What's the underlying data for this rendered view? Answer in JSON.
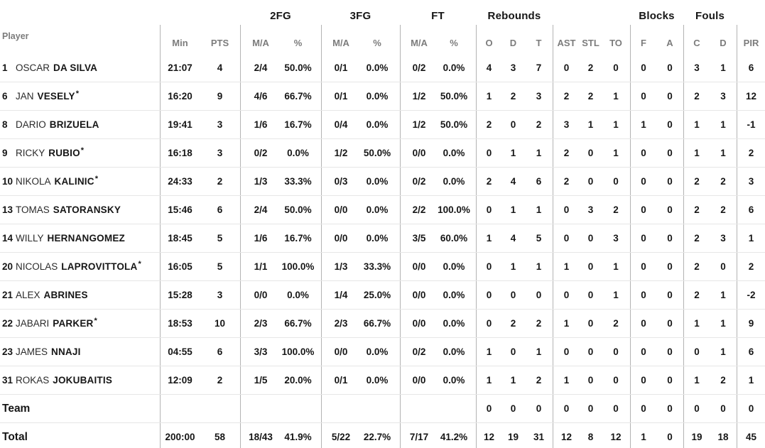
{
  "colors": {
    "text": "#161616",
    "header_gray": "#7c7c7c",
    "vertical_line": "#b3b3b3",
    "horizontal_line": "#e6e6e6",
    "background": "#ffffff"
  },
  "table": {
    "group_headers": [
      {
        "label": "",
        "span_cols": 3
      },
      {
        "label": "2FG",
        "span_cols": 2
      },
      {
        "label": "3FG",
        "span_cols": 2
      },
      {
        "label": "FT",
        "span_cols": 2
      },
      {
        "label": "Rebounds",
        "span_cols": 3
      },
      {
        "label": "",
        "span_cols": 3
      },
      {
        "label": "Blocks",
        "span_cols": 2
      },
      {
        "label": "Fouls",
        "span_cols": 2
      },
      {
        "label": "",
        "span_cols": 1
      }
    ],
    "columns": [
      "Player",
      "Min",
      "PTS",
      "M/A",
      "%",
      "M/A",
      "%",
      "M/A",
      "%",
      "O",
      "D",
      "T",
      "AST",
      "STL",
      "TO",
      "F",
      "A",
      "C",
      "D",
      "PIR"
    ],
    "stat_keys": [
      "min",
      "pts",
      "fg2_ma",
      "fg2_pct",
      "fg3_ma",
      "fg3_pct",
      "ft_ma",
      "ft_pct",
      "reb_o",
      "reb_d",
      "reb_t",
      "ast",
      "stl",
      "to",
      "blk_f",
      "blk_a",
      "foul_c",
      "foul_d",
      "pir"
    ],
    "starter_mark": "*",
    "rows": [
      {
        "no": "1",
        "first": "OSCAR",
        "last": "DA SILVA",
        "starter": false,
        "min": "21:07",
        "pts": "4",
        "fg2_ma": "2/4",
        "fg2_pct": "50.0%",
        "fg3_ma": "0/1",
        "fg3_pct": "0.0%",
        "ft_ma": "0/2",
        "ft_pct": "0.0%",
        "reb_o": "4",
        "reb_d": "3",
        "reb_t": "7",
        "ast": "0",
        "stl": "2",
        "to": "0",
        "blk_f": "0",
        "blk_a": "0",
        "foul_c": "3",
        "foul_d": "1",
        "pir": "6"
      },
      {
        "no": "6",
        "first": "JAN",
        "last": "VESELY",
        "starter": true,
        "min": "16:20",
        "pts": "9",
        "fg2_ma": "4/6",
        "fg2_pct": "66.7%",
        "fg3_ma": "0/1",
        "fg3_pct": "0.0%",
        "ft_ma": "1/2",
        "ft_pct": "50.0%",
        "reb_o": "1",
        "reb_d": "2",
        "reb_t": "3",
        "ast": "2",
        "stl": "2",
        "to": "1",
        "blk_f": "0",
        "blk_a": "0",
        "foul_c": "2",
        "foul_d": "3",
        "pir": "12"
      },
      {
        "no": "8",
        "first": "DARIO",
        "last": "BRIZUELA",
        "starter": false,
        "min": "19:41",
        "pts": "3",
        "fg2_ma": "1/6",
        "fg2_pct": "16.7%",
        "fg3_ma": "0/4",
        "fg3_pct": "0.0%",
        "ft_ma": "1/2",
        "ft_pct": "50.0%",
        "reb_o": "2",
        "reb_d": "0",
        "reb_t": "2",
        "ast": "3",
        "stl": "1",
        "to": "1",
        "blk_f": "1",
        "blk_a": "0",
        "foul_c": "1",
        "foul_d": "1",
        "pir": "-1"
      },
      {
        "no": "9",
        "first": "RICKY",
        "last": "RUBIO",
        "starter": true,
        "min": "16:18",
        "pts": "3",
        "fg2_ma": "0/2",
        "fg2_pct": "0.0%",
        "fg3_ma": "1/2",
        "fg3_pct": "50.0%",
        "ft_ma": "0/0",
        "ft_pct": "0.0%",
        "reb_o": "0",
        "reb_d": "1",
        "reb_t": "1",
        "ast": "2",
        "stl": "0",
        "to": "1",
        "blk_f": "0",
        "blk_a": "0",
        "foul_c": "1",
        "foul_d": "1",
        "pir": "2"
      },
      {
        "no": "10",
        "first": "NIKOLA",
        "last": "KALINIC",
        "starter": true,
        "min": "24:33",
        "pts": "2",
        "fg2_ma": "1/3",
        "fg2_pct": "33.3%",
        "fg3_ma": "0/3",
        "fg3_pct": "0.0%",
        "ft_ma": "0/2",
        "ft_pct": "0.0%",
        "reb_o": "2",
        "reb_d": "4",
        "reb_t": "6",
        "ast": "2",
        "stl": "0",
        "to": "0",
        "blk_f": "0",
        "blk_a": "0",
        "foul_c": "2",
        "foul_d": "2",
        "pir": "3"
      },
      {
        "no": "13",
        "first": "TOMAS",
        "last": "SATORANSKY",
        "starter": false,
        "min": "15:46",
        "pts": "6",
        "fg2_ma": "2/4",
        "fg2_pct": "50.0%",
        "fg3_ma": "0/0",
        "fg3_pct": "0.0%",
        "ft_ma": "2/2",
        "ft_pct": "100.0%",
        "reb_o": "0",
        "reb_d": "1",
        "reb_t": "1",
        "ast": "0",
        "stl": "3",
        "to": "2",
        "blk_f": "0",
        "blk_a": "0",
        "foul_c": "2",
        "foul_d": "2",
        "pir": "6"
      },
      {
        "no": "14",
        "first": "WILLY",
        "last": "HERNANGOMEZ",
        "starter": false,
        "min": "18:45",
        "pts": "5",
        "fg2_ma": "1/6",
        "fg2_pct": "16.7%",
        "fg3_ma": "0/0",
        "fg3_pct": "0.0%",
        "ft_ma": "3/5",
        "ft_pct": "60.0%",
        "reb_o": "1",
        "reb_d": "4",
        "reb_t": "5",
        "ast": "0",
        "stl": "0",
        "to": "3",
        "blk_f": "0",
        "blk_a": "0",
        "foul_c": "2",
        "foul_d": "3",
        "pir": "1"
      },
      {
        "no": "20",
        "first": "NICOLAS",
        "last": "LAPROVITTOLA",
        "starter": true,
        "min": "16:05",
        "pts": "5",
        "fg2_ma": "1/1",
        "fg2_pct": "100.0%",
        "fg3_ma": "1/3",
        "fg3_pct": "33.3%",
        "ft_ma": "0/0",
        "ft_pct": "0.0%",
        "reb_o": "0",
        "reb_d": "1",
        "reb_t": "1",
        "ast": "1",
        "stl": "0",
        "to": "1",
        "blk_f": "0",
        "blk_a": "0",
        "foul_c": "2",
        "foul_d": "0",
        "pir": "2"
      },
      {
        "no": "21",
        "first": "ALEX",
        "last": "ABRINES",
        "starter": false,
        "min": "15:28",
        "pts": "3",
        "fg2_ma": "0/0",
        "fg2_pct": "0.0%",
        "fg3_ma": "1/4",
        "fg3_pct": "25.0%",
        "ft_ma": "0/0",
        "ft_pct": "0.0%",
        "reb_o": "0",
        "reb_d": "0",
        "reb_t": "0",
        "ast": "0",
        "stl": "0",
        "to": "1",
        "blk_f": "0",
        "blk_a": "0",
        "foul_c": "2",
        "foul_d": "1",
        "pir": "-2"
      },
      {
        "no": "22",
        "first": "JABARI",
        "last": "PARKER",
        "starter": true,
        "min": "18:53",
        "pts": "10",
        "fg2_ma": "2/3",
        "fg2_pct": "66.7%",
        "fg3_ma": "2/3",
        "fg3_pct": "66.7%",
        "ft_ma": "0/0",
        "ft_pct": "0.0%",
        "reb_o": "0",
        "reb_d": "2",
        "reb_t": "2",
        "ast": "1",
        "stl": "0",
        "to": "2",
        "blk_f": "0",
        "blk_a": "0",
        "foul_c": "1",
        "foul_d": "1",
        "pir": "9"
      },
      {
        "no": "23",
        "first": "JAMES",
        "last": "NNAJI",
        "starter": false,
        "min": "04:55",
        "pts": "6",
        "fg2_ma": "3/3",
        "fg2_pct": "100.0%",
        "fg3_ma": "0/0",
        "fg3_pct": "0.0%",
        "ft_ma": "0/2",
        "ft_pct": "0.0%",
        "reb_o": "1",
        "reb_d": "0",
        "reb_t": "1",
        "ast": "0",
        "stl": "0",
        "to": "0",
        "blk_f": "0",
        "blk_a": "0",
        "foul_c": "0",
        "foul_d": "1",
        "pir": "6"
      },
      {
        "no": "31",
        "first": "ROKAS",
        "last": "JOKUBAITIS",
        "starter": false,
        "min": "12:09",
        "pts": "2",
        "fg2_ma": "1/5",
        "fg2_pct": "20.0%",
        "fg3_ma": "0/1",
        "fg3_pct": "0.0%",
        "ft_ma": "0/0",
        "ft_pct": "0.0%",
        "reb_o": "1",
        "reb_d": "1",
        "reb_t": "2",
        "ast": "1",
        "stl": "0",
        "to": "0",
        "blk_f": "0",
        "blk_a": "0",
        "foul_c": "1",
        "foul_d": "2",
        "pir": "1"
      }
    ],
    "team_row": {
      "label": "Team",
      "min": "",
      "pts": "",
      "fg2_ma": "",
      "fg2_pct": "",
      "fg3_ma": "",
      "fg3_pct": "",
      "ft_ma": "",
      "ft_pct": "",
      "reb_o": "0",
      "reb_d": "0",
      "reb_t": "0",
      "ast": "0",
      "stl": "0",
      "to": "0",
      "blk_f": "0",
      "blk_a": "0",
      "foul_c": "0",
      "foul_d": "0",
      "pir": "0"
    },
    "total_row": {
      "label": "Total",
      "min": "200:00",
      "pts": "58",
      "fg2_ma": "18/43",
      "fg2_pct": "41.9%",
      "fg3_ma": "5/22",
      "fg3_pct": "22.7%",
      "ft_ma": "7/17",
      "ft_pct": "41.2%",
      "reb_o": "12",
      "reb_d": "19",
      "reb_t": "31",
      "ast": "12",
      "stl": "8",
      "to": "12",
      "blk_f": "1",
      "blk_a": "0",
      "foul_c": "19",
      "foul_d": "18",
      "pir": "45"
    }
  }
}
